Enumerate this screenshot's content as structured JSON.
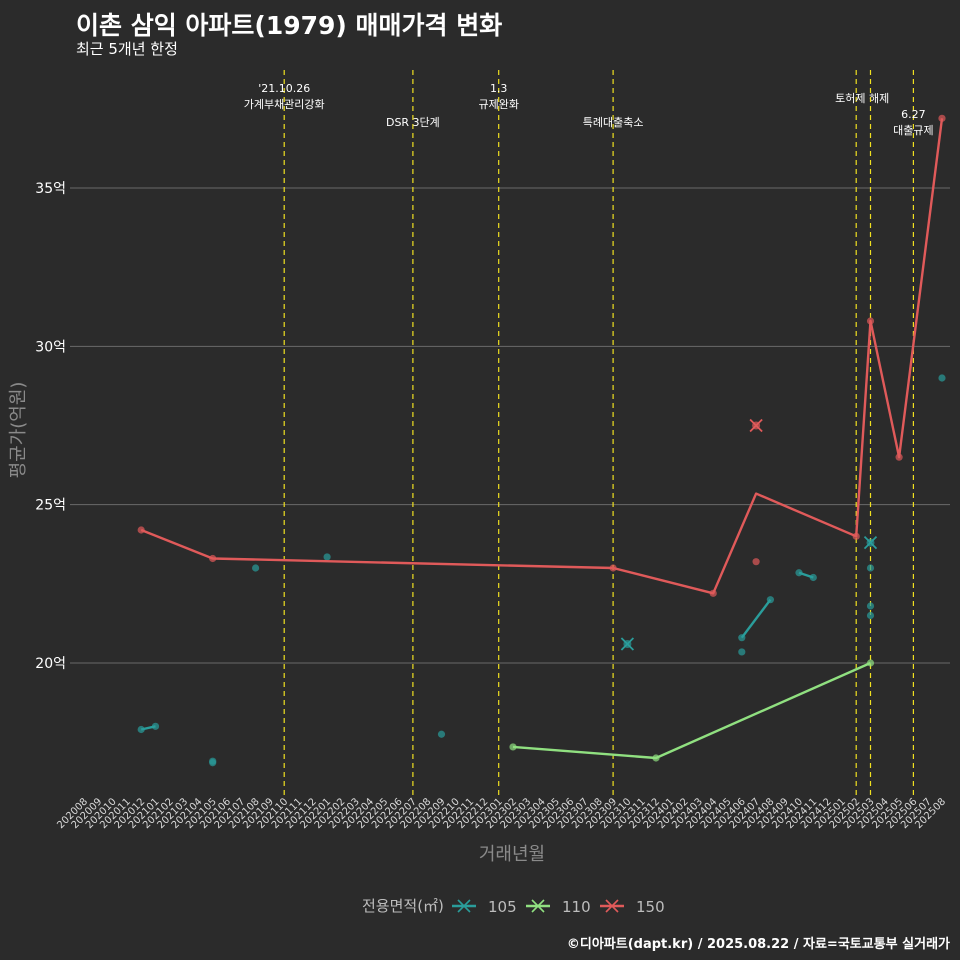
{
  "header": {
    "title": "이촌 삼익 아파트(1979) 매매가격 변화",
    "subtitle": "최근 5개년 한정"
  },
  "footer": {
    "caption": "©디아파트(dapt.kr) / 2025.08.22 / 자료=국토교통부 실거래가"
  },
  "colors": {
    "s105": "#2a9d9b",
    "s110": "#90e080",
    "s150": "#e05a5a",
    "event": "#f0e020",
    "grid": "#6a6a6a",
    "background": "#2b2b2b"
  },
  "chart_data": {
    "type": "line",
    "xlabel": "거래년월",
    "ylabel": "평균가(억원)",
    "x_months": [
      "202008",
      "202009",
      "202010",
      "202011",
      "202012",
      "202101",
      "202102",
      "202103",
      "202104",
      "202105",
      "202106",
      "202107",
      "202108",
      "202109",
      "202110",
      "202111",
      "202112",
      "202201",
      "202202",
      "202203",
      "202204",
      "202205",
      "202206",
      "202207",
      "202208",
      "202209",
      "202210",
      "202211",
      "202212",
      "202301",
      "202302",
      "202303",
      "202304",
      "202305",
      "202306",
      "202307",
      "202308",
      "202309",
      "202310",
      "202311",
      "202312",
      "202401",
      "202402",
      "202403",
      "202404",
      "202405",
      "202406",
      "202407",
      "202408",
      "202409",
      "202410",
      "202411",
      "202412",
      "202501",
      "202502",
      "202503",
      "202504",
      "202505",
      "202506",
      "202507",
      "202508"
    ],
    "y_ticks": [
      20,
      25,
      30,
      35
    ],
    "y_tick_labels": [
      "20억",
      "25억",
      "30억",
      "35억"
    ],
    "ylim": [
      16,
      39
    ],
    "legend": {
      "title": "전용면적(㎡)",
      "position": "bottom"
    },
    "series": [
      {
        "name": "105",
        "color_key": "s105",
        "line": [
          [
            "202012",
            17.9
          ],
          [
            "202101",
            18.0
          ]
        ],
        "line2": [
          [
            "202406",
            20.8
          ],
          [
            "202408",
            22.0
          ]
        ],
        "line3": [
          [
            "202410",
            22.85
          ],
          [
            "202411",
            22.7
          ]
        ],
        "points": [
          [
            "202012",
            17.9
          ],
          [
            "202101",
            18.0
          ],
          [
            "202105",
            16.9
          ],
          [
            "202105",
            16.85
          ],
          [
            "202108",
            23.0
          ],
          [
            "202201",
            23.35
          ],
          [
            "202209",
            17.75
          ],
          [
            "202406",
            20.35
          ],
          [
            "202406",
            20.8
          ],
          [
            "202408",
            22.0
          ],
          [
            "202410",
            22.85
          ],
          [
            "202411",
            22.7
          ],
          [
            "202503",
            23.0
          ],
          [
            "202503",
            21.8
          ],
          [
            "202503",
            21.5
          ],
          [
            "202508",
            29.0
          ]
        ],
        "cross_points": [
          [
            "202310",
            20.6
          ],
          [
            "202503",
            23.8
          ]
        ]
      },
      {
        "name": "110",
        "color_key": "s110",
        "line": [
          [
            "202302",
            17.35
          ],
          [
            "202312",
            17.0
          ],
          [
            "202503",
            20.0
          ]
        ],
        "points": [
          [
            "202302",
            17.35
          ],
          [
            "202312",
            17.0
          ],
          [
            "202503",
            20.0
          ]
        ],
        "cross_points": []
      },
      {
        "name": "150",
        "color_key": "s150",
        "line": [
          [
            "202012",
            24.2
          ],
          [
            "202105",
            23.3
          ],
          [
            "202309",
            23.0
          ],
          [
            "202404",
            22.2
          ],
          [
            "202407",
            25.35
          ],
          [
            "202502",
            24.0
          ],
          [
            "202503",
            30.8
          ],
          [
            "202505",
            26.5
          ],
          [
            "202508",
            37.2
          ]
        ],
        "points": [
          [
            "202012",
            24.2
          ],
          [
            "202105",
            23.3
          ],
          [
            "202309",
            23.0
          ],
          [
            "202404",
            22.2
          ],
          [
            "202407",
            23.2
          ],
          [
            "202502",
            24.0
          ],
          [
            "202503",
            30.8
          ],
          [
            "202505",
            26.5
          ],
          [
            "202508",
            37.2
          ]
        ],
        "cross_points": [
          [
            "202407",
            27.5
          ]
        ]
      }
    ],
    "events": [
      {
        "month": "202110",
        "lines": [
          "'21.10.26",
          "가계부채관리강화"
        ],
        "row": 0
      },
      {
        "month": "202207",
        "lines": [
          "DSR 3단계"
        ],
        "row": 1
      },
      {
        "month": "202301",
        "lines": [
          "1.3",
          "규제완화"
        ],
        "row": 0
      },
      {
        "month": "202309",
        "lines": [
          "특례대출축소"
        ],
        "row": 1
      },
      {
        "month": "202502",
        "lines": [
          "토허제 해제"
        ],
        "row": 0,
        "offset": 1
      },
      {
        "month": "202503",
        "lines": [],
        "row": 0
      },
      {
        "month": "202506",
        "lines": [
          "6.27",
          "대출규제"
        ],
        "row": 2
      }
    ]
  }
}
